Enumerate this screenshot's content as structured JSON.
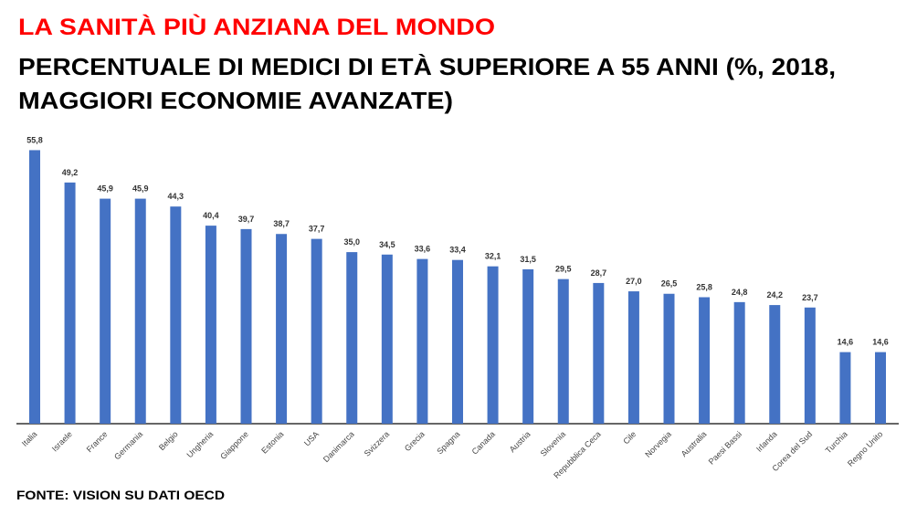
{
  "chart_data": {
    "type": "bar",
    "title": "LA SANITÀ PIÙ ANZIANA DEL MONDO",
    "subtitle": [
      "PERCENTUALE DI MEDICI DI ETÀ SUPERIORE A 55 ANNI (%, 2018,",
      "MAGGIORI ECONOMIE AVANZATE)"
    ],
    "source": "FONTE: VISION SU DATI OECD",
    "categories": [
      "Italia",
      "Israele",
      "France",
      "Germania",
      "Belgio",
      "Ungheria",
      "Giappone",
      "Estonia",
      "USA",
      "Danimarca",
      "Svizzera",
      "Grecia",
      "Spagna",
      "Canada",
      "Austria",
      "Slovenia",
      "Repubblica Ceca",
      "Cile",
      "Norvegia",
      "Australia",
      "Paesi Bassi",
      "Irlanda",
      "Corea del Sud",
      "Turchia",
      "Regno Unito"
    ],
    "values": [
      55.8,
      49.2,
      45.9,
      45.9,
      44.3,
      40.4,
      39.7,
      38.7,
      37.7,
      35.0,
      34.5,
      33.6,
      33.4,
      32.1,
      31.5,
      29.5,
      28.7,
      27.0,
      26.5,
      25.8,
      24.8,
      24.2,
      23.7,
      14.6,
      14.6
    ],
    "value_labels": [
      "55,8",
      "49,2",
      "45,9",
      "45,9",
      "44,3",
      "40,4",
      "39,7",
      "38,7",
      "37,7",
      "35,0",
      "34,5",
      "33,6",
      "33,4",
      "32,1",
      "31,5",
      "29,5",
      "28,7",
      "27,0",
      "26,5",
      "25,8",
      "24,8",
      "24,2",
      "23,7",
      "14,6",
      "14,6"
    ],
    "color": "#4472c4",
    "ylim": [
      0,
      57
    ]
  }
}
